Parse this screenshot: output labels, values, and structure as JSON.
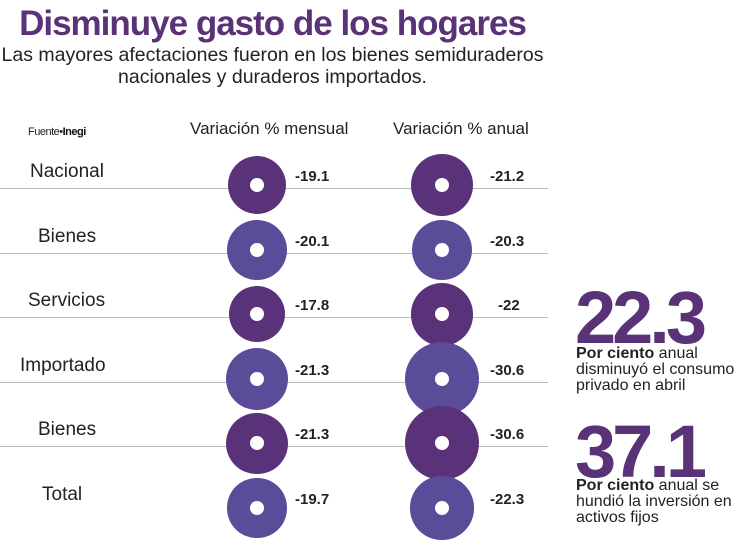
{
  "title": "Disminuye gasto de los hogares",
  "subtitle": "Las mayores afectaciones fueron en los bienes semiduraderos nacionales y duraderos importados.",
  "source_label": "Fuente•",
  "source_name": "Inegi",
  "colors": {
    "dark": "#5a3279",
    "light": "#5a4c98"
  },
  "chart_data": {
    "type": "table",
    "columns": [
      "Variación % mensual",
      "Variación % anual"
    ],
    "rows": [
      {
        "label": "Nacional",
        "mensual": -19.1,
        "anual": -21.2,
        "mensual_text": "-19.1",
        "anual_text": "-21.2",
        "shade": "dark"
      },
      {
        "label": "Bienes",
        "mensual": -20.1,
        "anual": -20.3,
        "mensual_text": "-20.1",
        "anual_text": "-20.3",
        "shade": "light"
      },
      {
        "label": "Servicios",
        "mensual": -17.8,
        "anual": -22,
        "mensual_text": "-17.8",
        "anual_text": "-22",
        "shade": "dark"
      },
      {
        "label": "Importado",
        "mensual": -21.3,
        "anual": -30.6,
        "mensual_text": "-21.3",
        "anual_text": "-30.6",
        "shade": "light"
      },
      {
        "label": "Bienes",
        "mensual": -21.3,
        "anual": -30.6,
        "mensual_text": "-21.3",
        "anual_text": "-30.6",
        "shade": "dark"
      },
      {
        "label": "Total",
        "mensual": -19.7,
        "anual": -22.3,
        "mensual_text": "-19.7",
        "anual_text": "-22.3",
        "shade": "light"
      }
    ]
  },
  "highlights": [
    {
      "number": "22.3",
      "bold": "Por ciento",
      "text": " anual disminuyó el consumo privado en abril"
    },
    {
      "number": "37.1",
      "bold": "Por ciento",
      "text": " anual se hundió la inversión en activos fijos"
    }
  ]
}
